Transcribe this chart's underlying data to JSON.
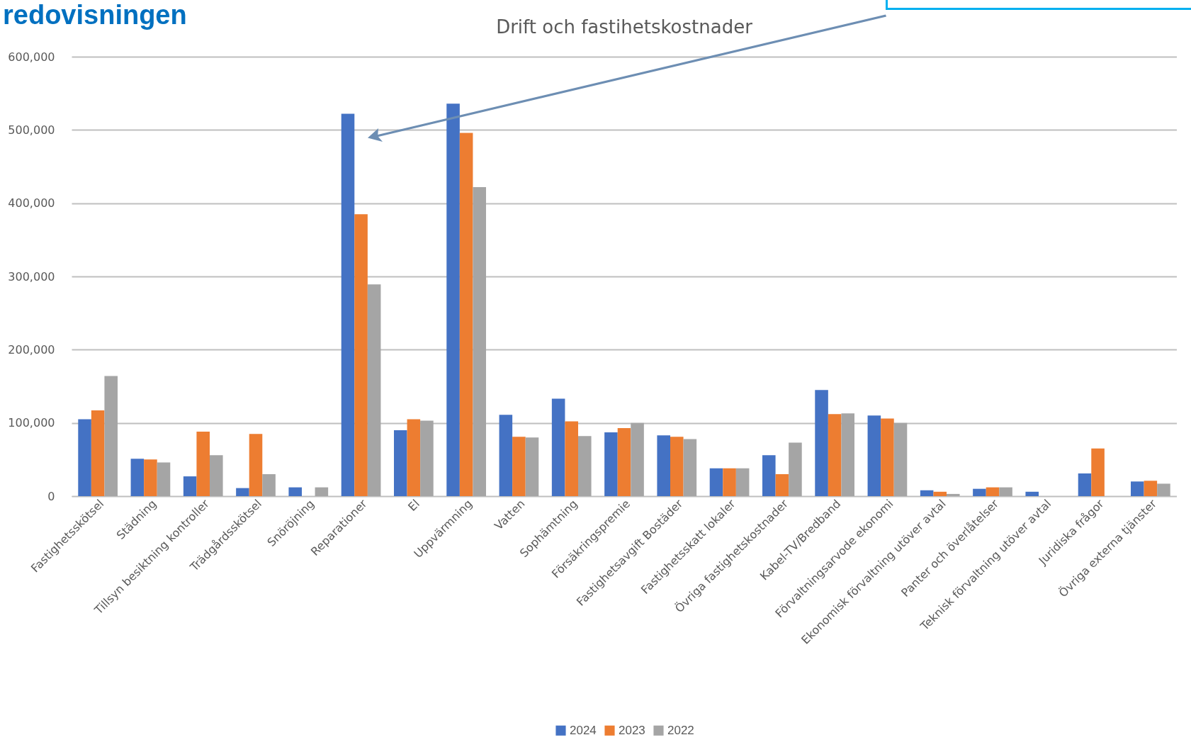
{
  "chart_data": {
    "type": "bar",
    "title": "Drift och fastihetskostnader",
    "annotations": [
      "redovisningen"
    ],
    "categories": [
      "Fastighetsskötsel",
      "Städning",
      "Tillsyn besiktning kontroller",
      "Trädgårdsskötsel",
      "Snöröjning",
      "Reparationer",
      "El",
      "Uppvärmning",
      "Vatten",
      "Sophämtning",
      "Försäkringspremie",
      "Fastighetsavgift Bostäder",
      "Fastighetsskatt lokaler",
      "Övriga fastighetskostnader",
      "Kabel-TV/Bredband",
      "Förvaltningsarvode ekonomi",
      "Ekonomisk förvaltning utöver avtal",
      "Panter och överlåtelser",
      "Teknisk förvaltning utöver avtal",
      "Juridiska frågor",
      "Övriga externa tjänster"
    ],
    "series": [
      {
        "name": "2024",
        "color": "#4472c4",
        "values": [
          105000,
          51000,
          27000,
          11000,
          12000,
          522000,
          90000,
          536000,
          111000,
          133000,
          87000,
          83000,
          38000,
          56000,
          145000,
          110000,
          8000,
          10000,
          6000,
          31000,
          20000
        ]
      },
      {
        "name": "2023",
        "color": "#ed7d31",
        "values": [
          117000,
          50000,
          88000,
          85000,
          0,
          385000,
          105000,
          496000,
          81000,
          102000,
          93000,
          81000,
          38000,
          30000,
          112000,
          106000,
          6000,
          12000,
          0,
          65000,
          21000
        ]
      },
      {
        "name": "2022",
        "color": "#a5a5a5",
        "values": [
          164000,
          46000,
          56000,
          30000,
          12000,
          289000,
          103000,
          422000,
          80000,
          82000,
          100000,
          78000,
          38000,
          73000,
          113000,
          100000,
          3000,
          12000,
          0,
          0,
          17000
        ]
      }
    ],
    "ylim": [
      0,
      600000
    ],
    "yticks": [
      0,
      {
        "value": 100000,
        "label": "100,000"
      },
      {
        "value": 200000,
        "label": "200,000"
      },
      {
        "value": 300000,
        "label": "300,000"
      },
      {
        "value": 400000,
        "label": "400,000"
      },
      {
        "value": 500000,
        "label": "500,000"
      },
      {
        "value": 600000,
        "label": "600,000"
      }
    ],
    "grid": "y",
    "legend": "bottom"
  }
}
